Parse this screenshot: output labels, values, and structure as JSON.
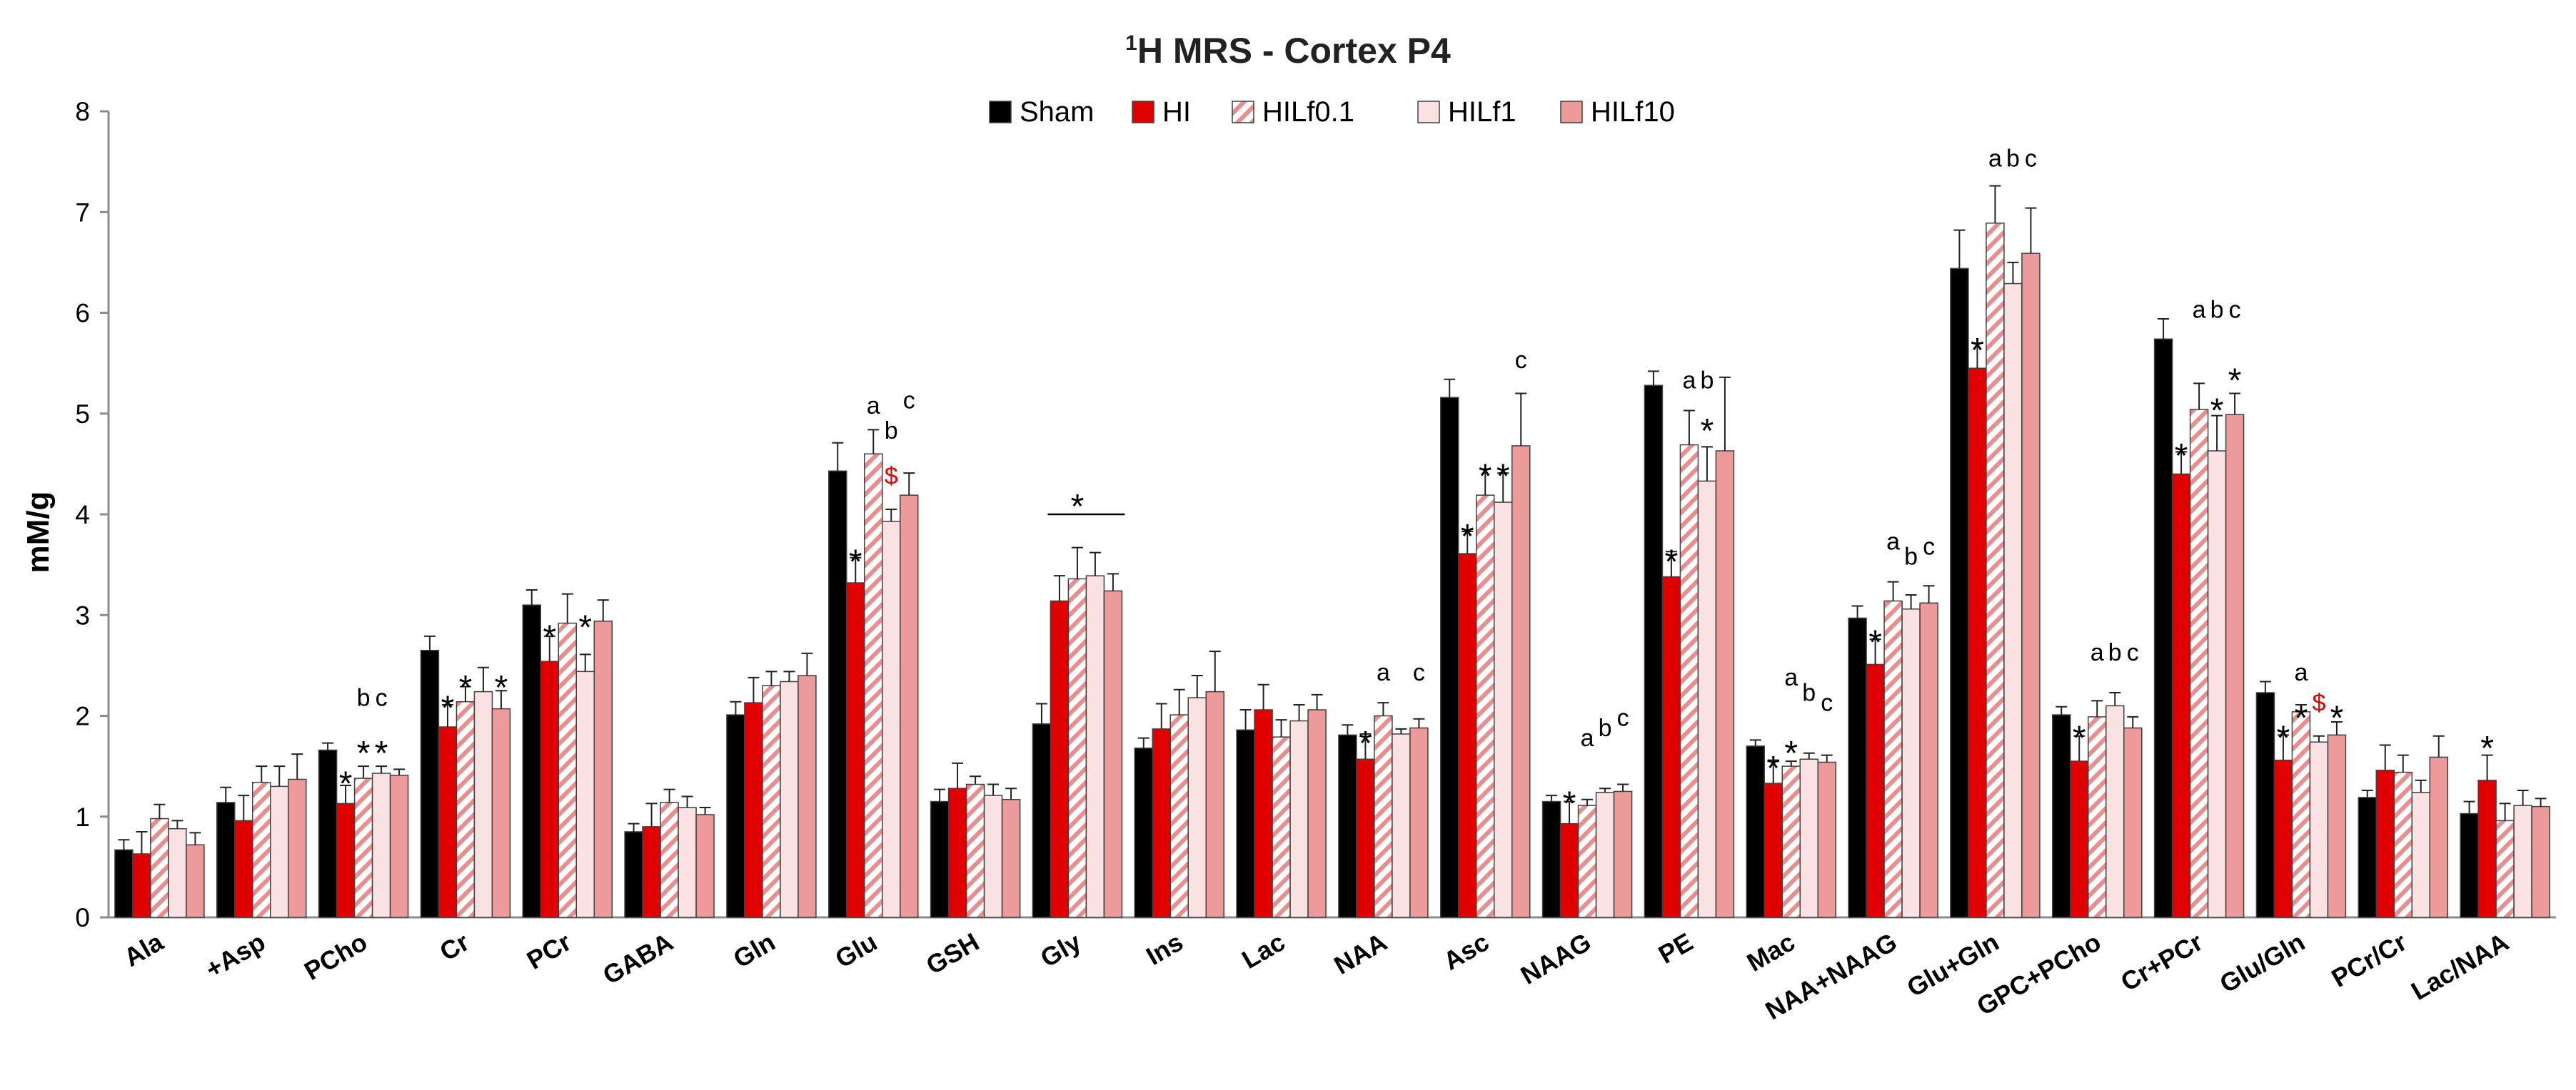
{
  "chart_data": {
    "type": "bar",
    "title_sup": "1",
    "title_main": "H MRS - Cortex P4",
    "title": "1H MRS - Cortex P4",
    "xlabel": "",
    "ylabel": "mM/g",
    "ylim": [
      0,
      8
    ],
    "yticks": [
      "0",
      "1",
      "2",
      "3",
      "4",
      "5",
      "6",
      "7",
      "8"
    ],
    "legend_position": "top-center",
    "grid": false,
    "categories": [
      "Ala",
      "+Asp",
      "PCho",
      "Cr",
      "PCr",
      "GABA",
      "Gln",
      "Glu",
      "GSH",
      "Gly",
      "Ins",
      "Lac",
      "NAA",
      "Asc",
      "NAAG",
      "PE",
      "Mac",
      "NAA+NAAG",
      "Glu+Gln",
      "GPC+PCho",
      "Cr+PCr",
      "Glu/Gln",
      "PCr/Cr",
      "Lac/NAA"
    ],
    "series": [
      {
        "name": "Sham",
        "fill": "#000000",
        "pattern": "solid",
        "values": [
          0.67,
          1.14,
          1.66,
          2.65,
          3.1,
          0.85,
          2.01,
          4.43,
          1.15,
          1.92,
          1.68,
          1.86,
          1.81,
          5.16,
          1.15,
          5.28,
          1.7,
          2.97,
          6.44,
          2.01,
          5.74,
          2.23,
          1.19,
          1.03
        ],
        "errors": [
          0.1,
          0.15,
          0.07,
          0.14,
          0.15,
          0.08,
          0.13,
          0.28,
          0.12,
          0.2,
          0.1,
          0.2,
          0.1,
          0.18,
          0.06,
          0.14,
          0.06,
          0.12,
          0.38,
          0.08,
          0.2,
          0.11,
          0.07,
          0.12
        ]
      },
      {
        "name": "HI",
        "fill": "#e00000",
        "pattern": "solid",
        "values": [
          0.63,
          0.96,
          1.13,
          1.89,
          2.54,
          0.9,
          2.13,
          3.32,
          1.28,
          3.14,
          1.87,
          2.06,
          1.57,
          3.61,
          0.93,
          3.38,
          1.33,
          2.51,
          5.45,
          1.55,
          4.4,
          1.56,
          1.46,
          1.36
        ],
        "errors": [
          0.22,
          0.25,
          0.18,
          0.22,
          0.25,
          0.23,
          0.25,
          0.25,
          0.25,
          0.25,
          0.25,
          0.25,
          0.25,
          0.22,
          0.22,
          0.25,
          0.23,
          0.25,
          0.25,
          0.25,
          0.22,
          0.25,
          0.25,
          0.25
        ]
      },
      {
        "name": "HILf0.1",
        "fill": "#f4c4c4",
        "pattern": "hatch",
        "values": [
          0.98,
          1.34,
          1.38,
          2.14,
          2.92,
          1.14,
          2.3,
          4.6,
          1.32,
          3.36,
          2.01,
          1.79,
          2.0,
          4.19,
          1.11,
          4.69,
          1.5,
          3.14,
          6.89,
          1.99,
          5.04,
          2.04,
          1.44,
          0.96
        ],
        "errors": [
          0.14,
          0.16,
          0.12,
          0.15,
          0.29,
          0.13,
          0.14,
          0.24,
          0.08,
          0.31,
          0.25,
          0.17,
          0.13,
          0.26,
          0.06,
          0.34,
          0.05,
          0.19,
          0.37,
          0.16,
          0.26,
          0.07,
          0.17,
          0.17
        ]
      },
      {
        "name": "HILf1",
        "fill": "#fbe2e2",
        "pattern": "solid",
        "values": [
          0.88,
          1.3,
          1.43,
          2.24,
          2.44,
          1.09,
          2.34,
          3.93,
          1.21,
          3.39,
          2.18,
          1.95,
          1.82,
          4.12,
          1.24,
          4.33,
          1.57,
          3.06,
          6.29,
          2.1,
          4.63,
          1.74,
          1.24,
          1.11
        ],
        "errors": [
          0.08,
          0.2,
          0.07,
          0.24,
          0.17,
          0.11,
          0.1,
          0.12,
          0.11,
          0.23,
          0.22,
          0.16,
          0.05,
          0.29,
          0.04,
          0.34,
          0.06,
          0.14,
          0.21,
          0.13,
          0.35,
          0.06,
          0.12,
          0.15
        ]
      },
      {
        "name": "HILf10",
        "fill": "#ec9a9a",
        "pattern": "solid",
        "values": [
          0.72,
          1.37,
          1.41,
          2.07,
          2.94,
          1.02,
          2.4,
          4.19,
          1.17,
          3.24,
          2.24,
          2.06,
          1.88,
          4.68,
          1.25,
          4.63,
          1.54,
          3.12,
          6.59,
          1.88,
          4.99,
          1.81,
          1.59,
          1.1
        ],
        "errors": [
          0.12,
          0.25,
          0.06,
          0.18,
          0.21,
          0.07,
          0.22,
          0.22,
          0.11,
          0.17,
          0.4,
          0.15,
          0.09,
          0.52,
          0.07,
          0.73,
          0.07,
          0.17,
          0.45,
          0.11,
          0.21,
          0.13,
          0.21,
          0.08
        ]
      }
    ],
    "annotations": [
      {
        "category": "PCho",
        "series": 1,
        "text": "*",
        "color": "#000000",
        "value": 1.4
      },
      {
        "category": "PCho",
        "series": 2,
        "text": "b",
        "color": "#000000",
        "value": 2.1
      },
      {
        "category": "PCho",
        "series": 3,
        "text": "c",
        "color": "#000000",
        "value": 2.1
      },
      {
        "category": "PCho",
        "series": 2,
        "text": "*",
        "color": "#000000",
        "value": 1.7
      },
      {
        "category": "PCho",
        "series": 3,
        "text": "*",
        "color": "#000000",
        "value": 1.7
      },
      {
        "category": "Cr",
        "series": 1,
        "text": "*",
        "color": "#000000",
        "value": 2.15
      },
      {
        "category": "Cr",
        "series": 2,
        "text": "*",
        "color": "#000000",
        "value": 2.35
      },
      {
        "category": "Cr",
        "series": 4,
        "text": "*",
        "color": "#000000",
        "value": 2.35
      },
      {
        "category": "PCr",
        "series": 1,
        "text": "*",
        "color": "#000000",
        "value": 2.85
      },
      {
        "category": "PCr",
        "series": 3,
        "text": "*",
        "color": "#000000",
        "value": 2.95
      },
      {
        "category": "Glu",
        "series": 1,
        "text": "*",
        "color": "#000000",
        "value": 3.6
      },
      {
        "category": "Glu",
        "series": 2,
        "text": "a",
        "color": "#000000",
        "value": 5.0
      },
      {
        "category": "Glu",
        "series": 3,
        "text": "b",
        "color": "#000000",
        "value": 4.75
      },
      {
        "category": "Glu",
        "series": 3,
        "text": "$",
        "color": "#e00000",
        "value": 4.3
      },
      {
        "category": "Glu",
        "series": 4,
        "text": "c",
        "color": "#000000",
        "value": 5.05
      },
      {
        "category": "Gly",
        "series": 2,
        "text": "*",
        "color": "#000000",
        "value": 4.15
      },
      {
        "category": "NAA",
        "series": 1,
        "text": "*",
        "color": "#000000",
        "value": 1.8
      },
      {
        "category": "NAA",
        "series": 2,
        "text": "a",
        "color": "#000000",
        "value": 2.35
      },
      {
        "category": "NAA",
        "series": 4,
        "text": "c",
        "color": "#000000",
        "value": 2.35
      },
      {
        "category": "Asc",
        "series": 1,
        "text": "*",
        "color": "#000000",
        "value": 3.85
      },
      {
        "category": "Asc",
        "series": 2,
        "text": "*",
        "color": "#000000",
        "value": 4.45
      },
      {
        "category": "Asc",
        "series": 3,
        "text": "*",
        "color": "#000000",
        "value": 4.45
      },
      {
        "category": "Asc",
        "series": 4,
        "text": "c",
        "color": "#000000",
        "value": 5.45
      },
      {
        "category": "NAAG",
        "series": 1,
        "text": "*",
        "color": "#000000",
        "value": 1.2
      },
      {
        "category": "NAAG",
        "series": 2,
        "text": "a",
        "color": "#000000",
        "value": 1.7
      },
      {
        "category": "NAAG",
        "series": 3,
        "text": "b",
        "color": "#000000",
        "value": 1.8
      },
      {
        "category": "NAAG",
        "series": 4,
        "text": "c",
        "color": "#000000",
        "value": 1.9
      },
      {
        "category": "PE",
        "series": 1,
        "text": "*",
        "color": "#000000",
        "value": 3.6
      },
      {
        "category": "PE",
        "series": 2,
        "text": "a",
        "color": "#000000",
        "value": 5.25
      },
      {
        "category": "PE",
        "series": 3,
        "text": "b",
        "color": "#000000",
        "value": 5.25
      },
      {
        "category": "PE",
        "series": 3,
        "text": "*",
        "color": "#000000",
        "value": 4.9
      },
      {
        "category": "Mac",
        "series": 1,
        "text": "*",
        "color": "#000000",
        "value": 1.55
      },
      {
        "category": "Mac",
        "series": 2,
        "text": "*",
        "color": "#000000",
        "value": 1.7
      },
      {
        "category": "Mac",
        "series": 2,
        "text": "a",
        "color": "#000000",
        "value": 2.3
      },
      {
        "category": "Mac",
        "series": 3,
        "text": "b",
        "color": "#000000",
        "value": 2.15
      },
      {
        "category": "Mac",
        "series": 4,
        "text": "c",
        "color": "#000000",
        "value": 2.05
      },
      {
        "category": "NAA+NAAG",
        "series": 1,
        "text": "*",
        "color": "#000000",
        "value": 2.8
      },
      {
        "category": "NAA+NAAG",
        "series": 2,
        "text": "a",
        "color": "#000000",
        "value": 3.65
      },
      {
        "category": "NAA+NAAG",
        "series": 3,
        "text": "b",
        "color": "#000000",
        "value": 3.5
      },
      {
        "category": "NAA+NAAG",
        "series": 4,
        "text": "c",
        "color": "#000000",
        "value": 3.6
      },
      {
        "category": "Glu+Gln",
        "series": 1,
        "text": "*",
        "color": "#000000",
        "value": 5.7
      },
      {
        "category": "Glu+Gln",
        "series": 2,
        "text": "a",
        "color": "#000000",
        "value": 7.45
      },
      {
        "category": "Glu+Gln",
        "series": 3,
        "text": "b",
        "color": "#000000",
        "value": 7.45
      },
      {
        "category": "Glu+Gln",
        "series": 4,
        "text": "c",
        "color": "#000000",
        "value": 7.45
      },
      {
        "category": "GPC+PCho",
        "series": 1,
        "text": "*",
        "color": "#000000",
        "value": 1.85
      },
      {
        "category": "GPC+PCho",
        "series": 2,
        "text": "a",
        "color": "#000000",
        "value": 2.55
      },
      {
        "category": "GPC+PCho",
        "series": 3,
        "text": "b",
        "color": "#000000",
        "value": 2.55
      },
      {
        "category": "GPC+PCho",
        "series": 4,
        "text": "c",
        "color": "#000000",
        "value": 2.55
      },
      {
        "category": "Cr+PCr",
        "series": 1,
        "text": "*",
        "color": "#000000",
        "value": 4.65
      },
      {
        "category": "Cr+PCr",
        "series": 2,
        "text": "a",
        "color": "#000000",
        "value": 5.95
      },
      {
        "category": "Cr+PCr",
        "series": 3,
        "text": "b",
        "color": "#000000",
        "value": 5.95
      },
      {
        "category": "Cr+PCr",
        "series": 4,
        "text": "c",
        "color": "#000000",
        "value": 5.95
      },
      {
        "category": "Cr+PCr",
        "series": 3,
        "text": "*",
        "color": "#000000",
        "value": 5.1
      },
      {
        "category": "Cr+PCr",
        "series": 4,
        "text": "*",
        "color": "#000000",
        "value": 5.4
      },
      {
        "category": "Glu/Gln",
        "series": 1,
        "text": "*",
        "color": "#000000",
        "value": 1.85
      },
      {
        "category": "Glu/Gln",
        "series": 2,
        "text": "a",
        "color": "#000000",
        "value": 2.35
      },
      {
        "category": "Glu/Gln",
        "series": 2,
        "text": "*",
        "color": "#000000",
        "value": 2.05
      },
      {
        "category": "Glu/Gln",
        "series": 3,
        "text": "$",
        "color": "#e00000",
        "value": 2.05
      },
      {
        "category": "Glu/Gln",
        "series": 4,
        "text": "*",
        "color": "#000000",
        "value": 2.05
      },
      {
        "category": "Lac/NAA",
        "series": 1,
        "text": "*",
        "color": "#000000",
        "value": 1.75
      }
    ],
    "brackets": [
      {
        "category": "Gly",
        "from_series": 1,
        "to_series": 4,
        "value": 4.0
      }
    ]
  }
}
